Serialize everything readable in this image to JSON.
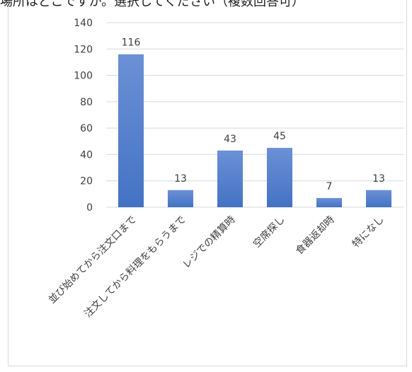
{
  "chart_data": {
    "type": "bar",
    "title": "場所はどこですか。選択してください（複数回答可）",
    "categories": [
      "並び始めてから注文口まで",
      "注文してから料理をもらうまで",
      "レジでの精算時",
      "空席探し",
      "食器返却時",
      "特になし"
    ],
    "values": [
      116,
      13,
      43,
      45,
      7,
      13
    ],
    "yticks": [
      "0",
      "20",
      "40",
      "60",
      "80",
      "100",
      "120",
      "140"
    ],
    "ylim": [
      0,
      140
    ],
    "grid": true,
    "bar_color": "#4472c4",
    "bar_color_top": "#6b91d6",
    "data_labels": true
  }
}
